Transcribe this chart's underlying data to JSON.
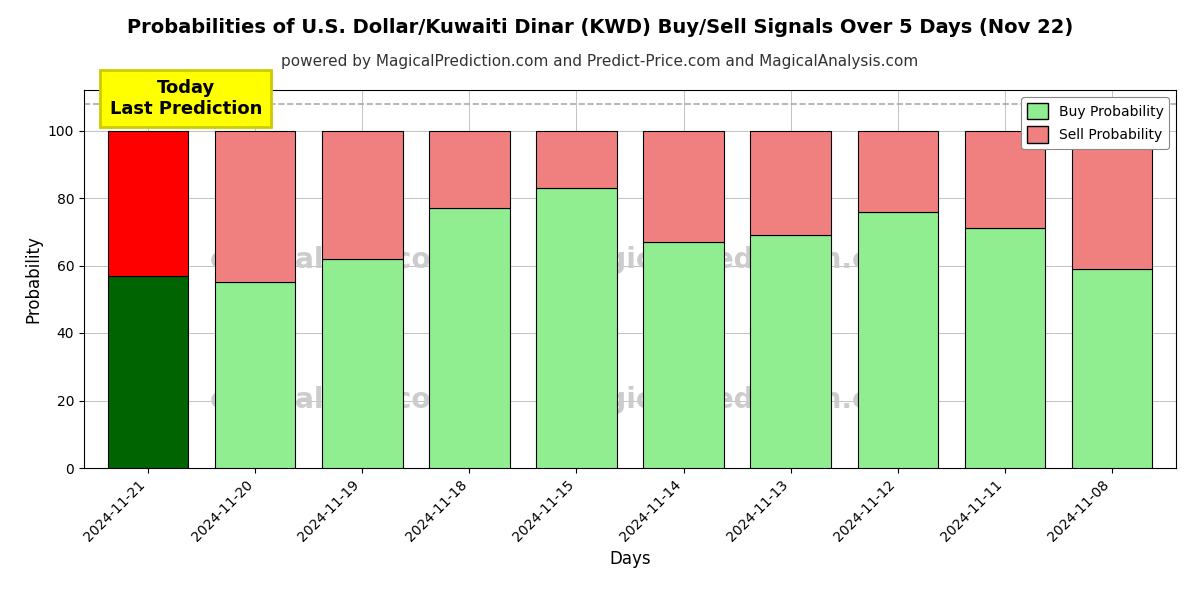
{
  "title": "Probabilities of U.S. Dollar/Kuwaiti Dinar (KWD) Buy/Sell Signals Over 5 Days (Nov 22)",
  "subtitle": "powered by MagicalPrediction.com and Predict-Price.com and MagicalAnalysis.com",
  "xlabel": "Days",
  "ylabel": "Probability",
  "dates": [
    "2024-11-21",
    "2024-11-20",
    "2024-11-19",
    "2024-11-18",
    "2024-11-15",
    "2024-11-14",
    "2024-11-13",
    "2024-11-12",
    "2024-11-11",
    "2024-11-08"
  ],
  "buy_values": [
    57,
    55,
    62,
    77,
    83,
    67,
    69,
    76,
    71,
    59
  ],
  "sell_values": [
    43,
    45,
    38,
    23,
    17,
    33,
    31,
    24,
    29,
    41
  ],
  "today_buy_color": "#006400",
  "today_sell_color": "#ff0000",
  "normal_buy_color": "#90EE90",
  "normal_sell_color": "#F08080",
  "bar_edge_color": "#000000",
  "ylim": [
    0,
    112
  ],
  "yticks": [
    0,
    20,
    40,
    60,
    80,
    100
  ],
  "dashed_line_y": 108,
  "background_color": "#ffffff",
  "grid_color": "#aaaaaa",
  "watermark_texts": [
    "calAnalysis.com",
    "MagicalPrediction.com"
  ],
  "watermark_color": "#cccccc",
  "today_label": "Today\nLast Prediction",
  "today_label_bg": "#ffff00",
  "legend_buy_label": "Buy Probability",
  "legend_sell_label": "Sell Probability",
  "title_fontsize": 14,
  "subtitle_fontsize": 11,
  "axis_label_fontsize": 12,
  "tick_fontsize": 10,
  "bar_width": 0.75
}
